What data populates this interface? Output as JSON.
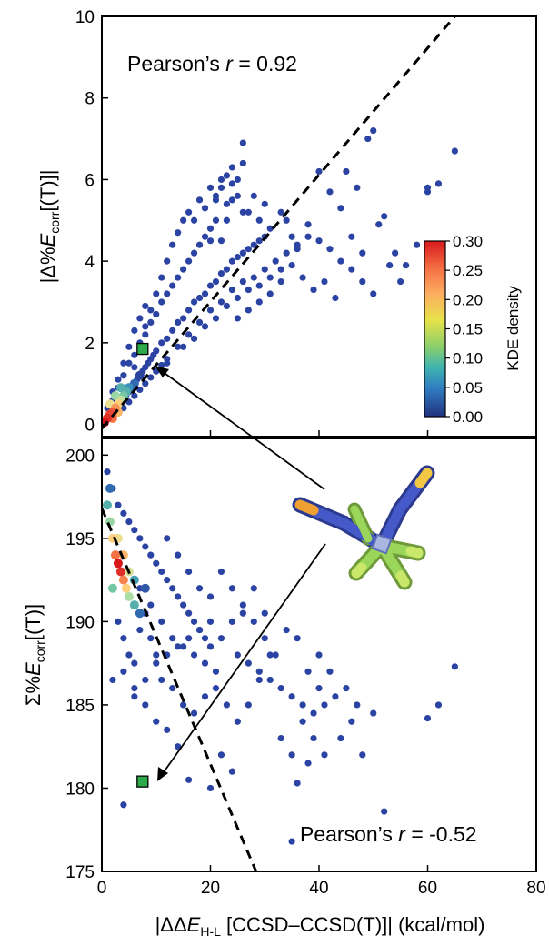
{
  "chart_data": [
    {
      "type": "scatter",
      "panel": "top",
      "xlim": [
        0,
        80
      ],
      "ylim": [
        -0.3,
        10
      ],
      "y_ticks": [
        0,
        2,
        4,
        6,
        8,
        10
      ],
      "y_tick_labels": [
        "0",
        "2",
        "4",
        "6",
        "8",
        "10"
      ],
      "ylabel": {
        "pre": "|Δ%",
        "var": "E",
        "sub": "corr",
        "post": "[(T)]|"
      },
      "annotation": {
        "pre": "Pearson’s ",
        "var": "r",
        "post": " = 0.92"
      },
      "fit_line": {
        "x": [
          0,
          65
        ],
        "y": [
          -0.1,
          10
        ]
      },
      "highlight_point": {
        "x": 7.5,
        "y": 1.85
      },
      "points": [
        [
          0.5,
          0.05
        ],
        [
          1,
          0.12
        ],
        [
          1.5,
          0.2
        ],
        [
          2,
          0.3
        ],
        [
          2.5,
          0.4
        ],
        [
          3,
          0.45
        ],
        [
          3.5,
          0.55
        ],
        [
          4,
          0.65
        ],
        [
          4.5,
          0.72
        ],
        [
          5,
          0.8
        ],
        [
          5.5,
          0.9
        ],
        [
          6,
          1.0
        ],
        [
          6.5,
          1.1
        ],
        [
          7,
          1.2
        ],
        [
          7.5,
          1.3
        ],
        [
          8,
          1.4
        ],
        [
          8.5,
          1.5
        ],
        [
          9,
          1.6
        ],
        [
          9.5,
          1.7
        ],
        [
          10,
          1.8
        ],
        [
          2,
          0.6
        ],
        [
          3,
          0.9
        ],
        [
          4,
          1.2
        ],
        [
          5,
          1.5
        ],
        [
          6,
          1.7
        ],
        [
          7,
          2.0
        ],
        [
          8,
          2.2
        ],
        [
          9,
          2.5
        ],
        [
          10,
          2.7
        ],
        [
          11,
          3.0
        ],
        [
          12,
          3.2
        ],
        [
          13,
          3.4
        ],
        [
          14,
          3.6
        ],
        [
          15,
          3.8
        ],
        [
          16,
          4.0
        ],
        [
          17,
          4.2
        ],
        [
          18,
          4.4
        ],
        [
          19,
          4.6
        ],
        [
          20,
          4.8
        ],
        [
          21,
          5.0
        ],
        [
          11,
          2.0
        ],
        [
          12,
          2.1
        ],
        [
          13,
          2.3
        ],
        [
          14,
          2.5
        ],
        [
          15,
          2.6
        ],
        [
          16,
          2.8
        ],
        [
          17,
          3.0
        ],
        [
          18,
          3.1
        ],
        [
          19,
          3.2
        ],
        [
          20,
          3.4
        ],
        [
          21,
          3.5
        ],
        [
          22,
          3.7
        ],
        [
          23,
          3.8
        ],
        [
          24,
          4.0
        ],
        [
          25,
          4.1
        ],
        [
          26,
          4.2
        ],
        [
          27,
          4.3
        ],
        [
          28,
          4.4
        ],
        [
          29,
          4.5
        ],
        [
          30,
          4.6
        ],
        [
          12,
          1.5
        ],
        [
          14,
          1.9
        ],
        [
          16,
          2.2
        ],
        [
          18,
          2.5
        ],
        [
          20,
          2.8
        ],
        [
          22,
          3.0
        ],
        [
          24,
          3.3
        ],
        [
          26,
          3.5
        ],
        [
          28,
          3.6
        ],
        [
          30,
          3.8
        ],
        [
          32,
          4.0
        ],
        [
          34,
          4.2
        ],
        [
          36,
          4.4
        ],
        [
          38,
          4.6
        ],
        [
          40,
          4.5
        ],
        [
          42,
          4.3
        ],
        [
          44,
          4.0
        ],
        [
          46,
          3.8
        ],
        [
          48,
          3.5
        ],
        [
          50,
          3.2
        ],
        [
          22,
          4.5
        ],
        [
          23,
          5.0
        ],
        [
          24,
          5.5
        ],
        [
          25,
          6.0
        ],
        [
          26,
          6.4
        ],
        [
          26,
          6.9
        ],
        [
          24,
          6.3
        ],
        [
          23,
          6.1
        ],
        [
          22,
          5.8
        ],
        [
          21,
          5.5
        ],
        [
          27,
          5.2
        ],
        [
          28,
          5.6
        ],
        [
          29,
          5.0
        ],
        [
          30,
          5.4
        ],
        [
          31,
          4.8
        ],
        [
          33,
          5.2
        ],
        [
          34,
          5.0
        ],
        [
          35,
          4.6
        ],
        [
          36,
          4.3
        ],
        [
          38,
          4.9
        ],
        [
          40,
          6.2
        ],
        [
          42,
          5.7
        ],
        [
          44,
          5.3
        ],
        [
          45,
          6.2
        ],
        [
          47,
          5.8
        ],
        [
          49,
          7.0
        ],
        [
          50,
          7.2
        ],
        [
          52,
          5.1
        ],
        [
          54,
          4.2
        ],
        [
          55,
          3.5
        ],
        [
          56,
          3.9
        ],
        [
          60,
          5.8
        ],
        [
          60,
          5.7
        ],
        [
          62,
          5.9
        ],
        [
          65,
          6.7
        ],
        [
          58,
          4.4
        ],
        [
          53,
          3.9
        ],
        [
          51,
          4.9
        ],
        [
          48,
          4.2
        ],
        [
          46,
          4.6
        ],
        [
          35,
          3.9
        ],
        [
          37,
          3.6
        ],
        [
          39,
          3.3
        ],
        [
          41,
          3.5
        ],
        [
          43,
          3.1
        ],
        [
          33,
          3.5
        ],
        [
          31,
          3.2
        ],
        [
          29,
          3.0
        ],
        [
          27,
          2.8
        ],
        [
          25,
          2.6
        ],
        [
          8,
          2.4
        ],
        [
          9,
          2.8
        ],
        [
          10,
          3.2
        ],
        [
          11,
          3.6
        ],
        [
          12,
          4.0
        ],
        [
          13,
          4.4
        ],
        [
          14,
          4.7
        ],
        [
          15,
          5.0
        ],
        [
          16,
          5.2
        ],
        [
          17,
          5.0
        ],
        [
          18,
          5.5
        ],
        [
          19,
          5.3
        ],
        [
          20,
          5.8
        ],
        [
          21,
          5.6
        ],
        [
          22,
          6.0
        ],
        [
          24,
          5.9
        ],
        [
          26,
          5.2
        ],
        [
          25,
          5.6
        ],
        [
          23,
          5.4
        ],
        [
          20,
          4.5
        ],
        [
          15,
          1.9
        ],
        [
          17,
          2.1
        ],
        [
          19,
          2.4
        ],
        [
          21,
          2.6
        ],
        [
          23,
          2.9
        ],
        [
          25,
          3.1
        ],
        [
          27,
          3.3
        ],
        [
          29,
          3.4
        ],
        [
          31,
          3.6
        ],
        [
          33,
          3.8
        ],
        [
          3,
          0.3
        ],
        [
          4,
          0.4
        ],
        [
          5,
          0.55
        ],
        [
          6,
          0.7
        ],
        [
          7,
          0.85
        ],
        [
          8,
          1.0
        ],
        [
          9,
          1.15
        ],
        [
          10,
          1.3
        ],
        [
          11,
          1.45
        ],
        [
          12,
          1.6
        ],
        [
          1,
          0.4
        ],
        [
          2,
          0.8
        ],
        [
          3,
          1.1
        ],
        [
          4,
          1.5
        ],
        [
          5,
          1.9
        ],
        [
          6,
          2.3
        ],
        [
          7,
          2.6
        ],
        [
          8,
          2.9
        ],
        [
          6,
          1.4
        ],
        [
          4,
          0.9
        ]
      ],
      "density_cluster": [
        [
          0.5,
          0.05,
          0.3
        ],
        [
          1,
          0.15,
          0.29
        ],
        [
          1.5,
          0.25,
          0.28
        ],
        [
          2,
          0.3,
          0.27
        ],
        [
          2.5,
          0.4,
          0.24
        ],
        [
          3,
          0.5,
          0.2
        ],
        [
          3.5,
          0.6,
          0.16
        ],
        [
          4,
          0.7,
          0.12
        ],
        [
          4.5,
          0.8,
          0.1
        ],
        [
          5,
          0.9,
          0.08
        ],
        [
          6,
          1.0,
          0.06
        ],
        [
          7,
          1.2,
          0.04
        ],
        [
          1.5,
          0.5,
          0.18
        ],
        [
          2.5,
          0.7,
          0.14
        ],
        [
          3.5,
          0.9,
          0.1
        ],
        [
          2,
          0.15,
          0.26
        ],
        [
          3,
          0.3,
          0.22
        ]
      ]
    },
    {
      "type": "scatter",
      "panel": "bottom",
      "xlim": [
        0,
        80
      ],
      "ylim": [
        175,
        201
      ],
      "x_ticks": [
        0,
        20,
        40,
        60,
        80
      ],
      "x_tick_labels": [
        "0",
        "20",
        "40",
        "60",
        "80"
      ],
      "y_ticks": [
        175,
        180,
        185,
        190,
        195,
        200
      ],
      "y_tick_labels": [
        "175",
        "180",
        "185",
        "190",
        "195",
        "200"
      ],
      "ylabel": {
        "pre": "Σ%",
        "var": "E",
        "sub": "corr",
        "post": "[(T)]"
      },
      "xlabel": {
        "pre": "|ΔΔ",
        "var": "E",
        "sub": "H-L",
        "post": " [CCSD–CCSD(T)]| (kcal/mol)"
      },
      "annotation": {
        "pre": "Pearson’s ",
        "var": "r",
        "post": " = -0.52"
      },
      "fit_line": {
        "x": [
          0,
          31
        ],
        "y": [
          196.8,
          173
        ]
      },
      "highlight_point": {
        "x": 7.5,
        "y": 180.4
      },
      "points": [
        [
          1,
          199
        ],
        [
          2,
          198
        ],
        [
          3,
          197
        ],
        [
          4,
          196.5
        ],
        [
          5,
          196
        ],
        [
          6,
          195.5
        ],
        [
          7,
          195
        ],
        [
          8,
          194.5
        ],
        [
          9,
          194
        ],
        [
          10,
          193.5
        ],
        [
          11,
          193
        ],
        [
          12,
          192.5
        ],
        [
          13,
          192
        ],
        [
          14,
          191.5
        ],
        [
          15,
          191
        ],
        [
          16,
          190.5
        ],
        [
          17,
          190
        ],
        [
          18,
          189.5
        ],
        [
          19,
          189
        ],
        [
          20,
          188.5
        ],
        [
          3,
          195
        ],
        [
          5,
          193
        ],
        [
          7,
          192
        ],
        [
          9,
          191
        ],
        [
          11,
          190
        ],
        [
          13,
          189
        ],
        [
          15,
          188.5
        ],
        [
          17,
          188
        ],
        [
          19,
          187.5
        ],
        [
          21,
          187
        ],
        [
          22,
          189
        ],
        [
          24,
          190
        ],
        [
          26,
          191
        ],
        [
          28,
          192
        ],
        [
          30,
          189
        ],
        [
          32,
          188
        ],
        [
          34,
          189.5
        ],
        [
          36,
          189
        ],
        [
          38,
          187
        ],
        [
          40,
          186
        ],
        [
          25,
          188
        ],
        [
          27,
          187.5
        ],
        [
          29,
          187
        ],
        [
          31,
          186.5
        ],
        [
          33,
          186
        ],
        [
          35,
          185.5
        ],
        [
          37,
          185
        ],
        [
          39,
          184.5
        ],
        [
          41,
          185
        ],
        [
          43,
          185.5
        ],
        [
          44,
          183
        ],
        [
          46,
          184
        ],
        [
          48,
          182
        ],
        [
          52,
          178.6
        ],
        [
          60,
          184.2
        ],
        [
          62,
          185
        ],
        [
          65,
          187.3
        ],
        [
          36,
          180.3
        ],
        [
          38,
          181.5
        ],
        [
          35,
          176.8
        ],
        [
          20,
          180
        ],
        [
          22,
          182
        ],
        [
          24,
          181
        ],
        [
          16,
          180.5
        ],
        [
          14,
          182.5
        ],
        [
          12,
          183.5
        ],
        [
          10,
          184
        ],
        [
          8,
          185
        ],
        [
          6,
          186
        ],
        [
          4,
          187
        ],
        [
          2,
          186.5
        ],
        [
          4,
          179
        ],
        [
          6,
          185.5
        ],
        [
          8,
          186.5
        ],
        [
          10,
          187.5
        ],
        [
          12,
          188
        ],
        [
          14,
          188.5
        ],
        [
          16,
          189
        ],
        [
          18,
          189.5
        ],
        [
          20,
          190
        ],
        [
          2,
          192
        ],
        [
          3,
          190
        ],
        [
          4,
          189
        ],
        [
          5,
          188
        ],
        [
          6,
          187.5
        ],
        [
          7,
          189.5
        ],
        [
          8,
          190.5
        ],
        [
          9,
          189
        ],
        [
          10,
          188
        ],
        [
          11,
          186.5
        ],
        [
          13,
          186
        ],
        [
          15,
          185
        ],
        [
          17,
          184.5
        ],
        [
          19,
          185.5
        ],
        [
          21,
          186
        ],
        [
          23,
          185
        ],
        [
          25,
          184
        ],
        [
          27,
          185
        ],
        [
          29,
          186.5
        ],
        [
          31,
          188
        ],
        [
          22,
          193
        ],
        [
          24,
          192
        ],
        [
          26,
          190.5
        ],
        [
          28,
          190
        ],
        [
          30,
          190.5
        ],
        [
          14,
          194
        ],
        [
          16,
          193
        ],
        [
          18,
          192
        ],
        [
          20,
          191.5
        ],
        [
          12,
          195
        ],
        [
          40,
          188
        ],
        [
          42,
          187
        ],
        [
          45,
          186
        ],
        [
          47,
          185
        ],
        [
          50,
          184.5
        ],
        [
          33,
          183
        ],
        [
          35,
          182
        ],
        [
          37,
          184
        ],
        [
          39,
          183
        ],
        [
          41,
          182
        ]
      ],
      "density_cluster": [
        [
          1,
          197,
          0.1
        ],
        [
          1.5,
          196,
          0.14
        ],
        [
          2,
          195,
          0.2
        ],
        [
          2.5,
          194,
          0.26
        ],
        [
          3,
          193.5,
          0.3
        ],
        [
          3.5,
          193,
          0.29
        ],
        [
          4,
          192.5,
          0.25
        ],
        [
          4.5,
          192,
          0.2
        ],
        [
          5,
          191.5,
          0.15
        ],
        [
          6,
          191,
          0.1
        ],
        [
          7,
          190.5,
          0.06
        ],
        [
          3,
          195,
          0.18
        ],
        [
          4,
          194,
          0.22
        ],
        [
          5,
          193,
          0.17
        ],
        [
          2,
          192,
          0.12
        ],
        [
          6,
          192.5,
          0.09
        ],
        [
          8,
          192,
          0.05
        ],
        [
          1.5,
          198,
          0.06
        ]
      ]
    }
  ],
  "colorbar": {
    "label": "KDE density",
    "min": 0,
    "max": 0.3,
    "ticks": [
      "0.30",
      "0.25",
      "0.20",
      "0.15",
      "0.10",
      "0.05",
      "0.00"
    ],
    "colors": [
      "#d7191c",
      "#f46d43",
      "#fdae61",
      "#fee08b",
      "#abdda4",
      "#66c2a5",
      "#3288bd",
      "#2c3e9e",
      "#21317e"
    ]
  },
  "colors": {
    "points": "#2b43a3",
    "highlight": "#2eaa4a",
    "molecule_body": "#3b4fbf",
    "molecule_green": "#8fd14f",
    "molecule_yellow": "#f2c744",
    "molecule_orange": "#f0a030"
  }
}
